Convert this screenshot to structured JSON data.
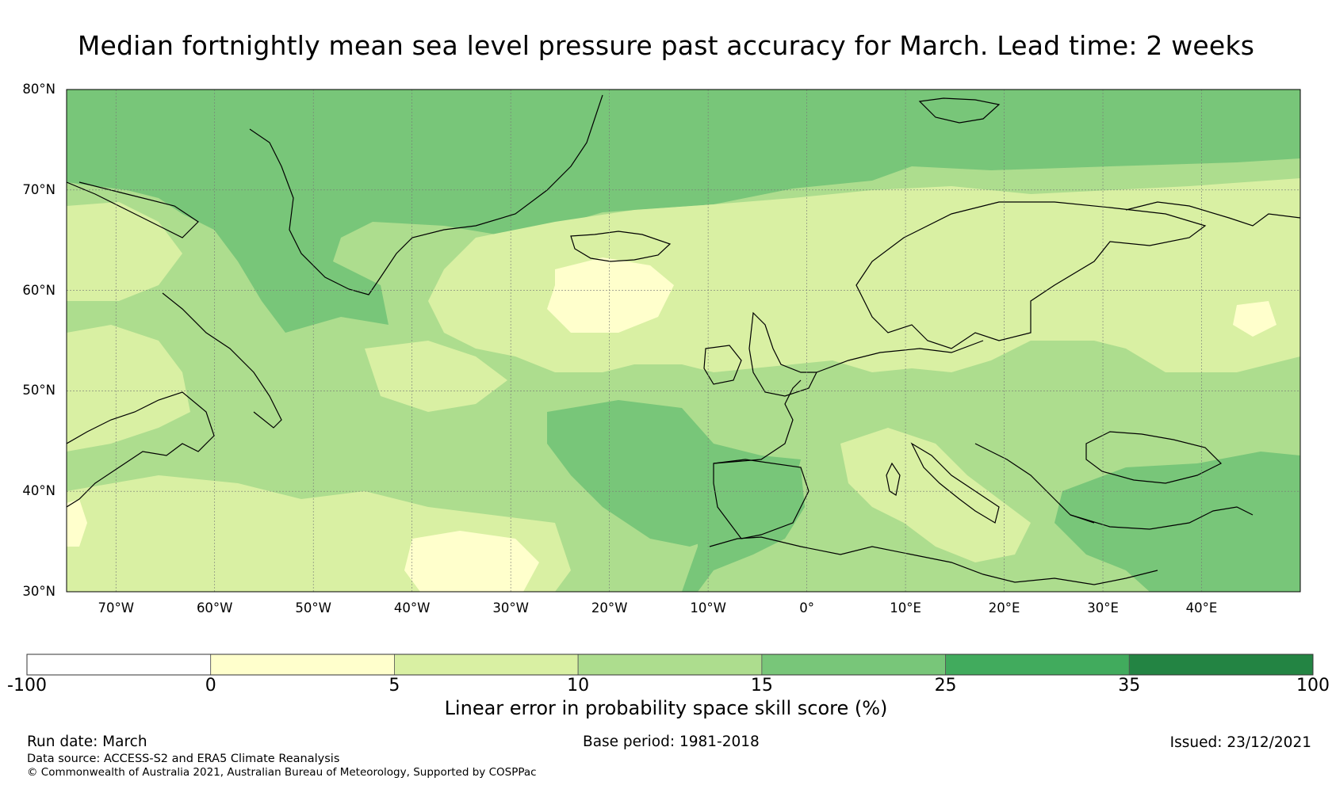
{
  "title": "Median fortnightly mean sea level pressure past accuracy for March. Lead time: 2 weeks",
  "map": {
    "lat_range": [
      30,
      80
    ],
    "lon_range": [
      -75,
      50
    ],
    "lat_ticks": [
      {
        "value": 80,
        "label": "80°N"
      },
      {
        "value": 70,
        "label": "70°N"
      },
      {
        "value": 60,
        "label": "60°N"
      },
      {
        "value": 50,
        "label": "50°N"
      },
      {
        "value": 40,
        "label": "40°N"
      },
      {
        "value": 30,
        "label": "30°N"
      }
    ],
    "lon_ticks": [
      {
        "value": -70,
        "label": "70°W"
      },
      {
        "value": -60,
        "label": "60°W"
      },
      {
        "value": -50,
        "label": "50°W"
      },
      {
        "value": -40,
        "label": "40°W"
      },
      {
        "value": -30,
        "label": "30°W"
      },
      {
        "value": -20,
        "label": "20°W"
      },
      {
        "value": -10,
        "label": "10°W"
      },
      {
        "value": 0,
        "label": "0°"
      },
      {
        "value": 10,
        "label": "10°E"
      },
      {
        "value": 20,
        "label": "20°E"
      },
      {
        "value": 30,
        "label": "30°E"
      },
      {
        "value": 40,
        "label": "40°E"
      }
    ],
    "gridlines": true
  },
  "colorbar": {
    "title": "Linear error in probability space skill score (%)",
    "boundaries": [
      "-100",
      "0",
      "5",
      "10",
      "15",
      "25",
      "35",
      "100"
    ],
    "colors": [
      "#ffffff",
      "#ffffcc",
      "#d9f0a3",
      "#addd8e",
      "#78c679",
      "#41ab5d",
      "#238443"
    ]
  },
  "footer": {
    "run_date": "Run date: March",
    "base_period": "Base period: 1981-2018",
    "issued": "Issued: 23/12/2021",
    "data_source": "Data source: ACCESS-S2 and ERA5 Climate Reanalysis",
    "copyright": "© Commonwealth of Australia 2021, Australian Bureau of Meteorology, Supported by COSPPac"
  }
}
